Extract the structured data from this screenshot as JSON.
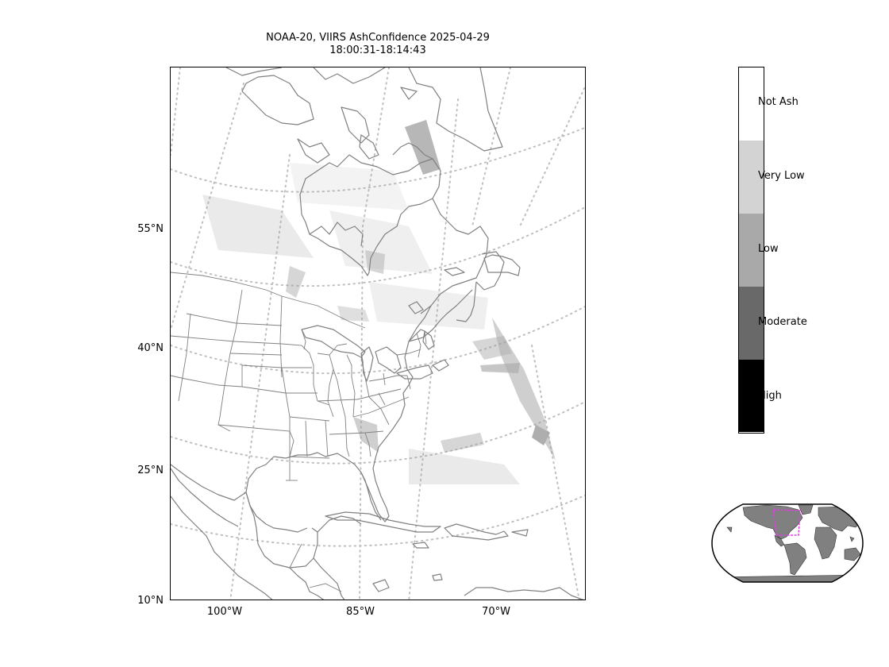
{
  "title": {
    "line1": "NOAA-20, VIIRS AshConfidence 2025-04-29",
    "line2": "18:00:31-18:14:43"
  },
  "map": {
    "latitude_labels": [
      "55°N",
      "40°N",
      "25°N",
      "10°N"
    ],
    "longitude_labels": [
      "100°W",
      "85°W",
      "70°W"
    ],
    "gridline_style": "dotted",
    "coastline_color": "#808080",
    "ash_color": "#a0a0a0"
  },
  "colorbar": {
    "categories": [
      {
        "label": "Not Ash",
        "color": "#ffffff"
      },
      {
        "label": "Very Low",
        "color": "#d3d3d3"
      },
      {
        "label": "Low",
        "color": "#a9a9a9"
      },
      {
        "label": "Moderate",
        "color": "#696969"
      },
      {
        "label": "High",
        "color": "#000000"
      }
    ]
  },
  "inset_globe": {
    "land_color": "#808080",
    "highlight_color": "#e040e0"
  }
}
